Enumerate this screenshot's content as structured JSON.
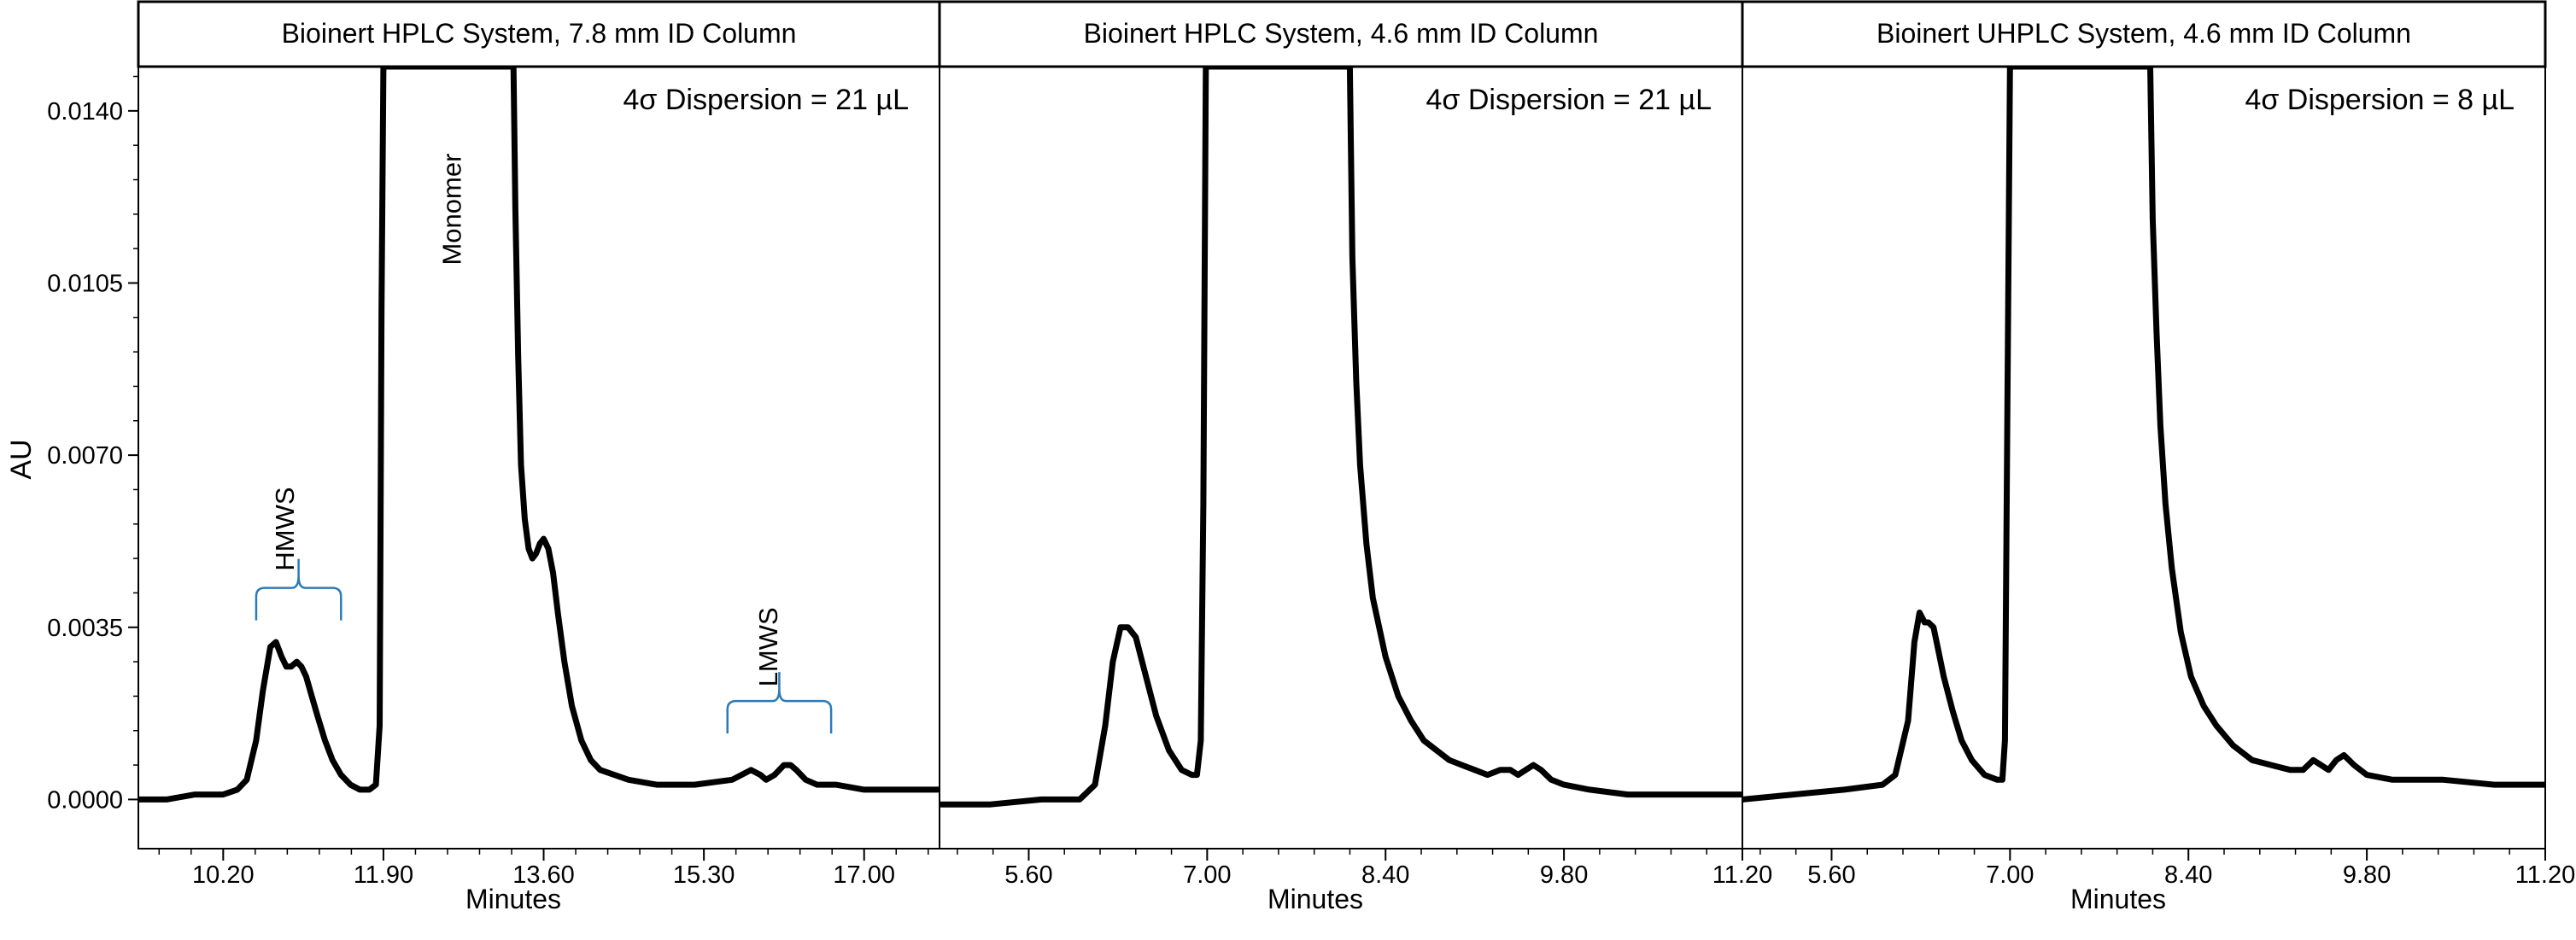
{
  "y_axis": {
    "label": "AU",
    "ticks": [
      {
        "value": 0.0,
        "label": "0.0000"
      },
      {
        "value": 0.0035,
        "label": "0.0035"
      },
      {
        "value": 0.007,
        "label": "0.0070"
      },
      {
        "value": 0.0105,
        "label": "0.0105"
      },
      {
        "value": 0.014,
        "label": "0.0140"
      }
    ]
  },
  "colors": {
    "trace": "#000000",
    "annotation": "#2b7bb9",
    "frame": "#000000",
    "background": "#ffffff"
  },
  "chart_data": [
    {
      "type": "line",
      "title": "Bioinert HPLC System, 7.8 mm ID Column",
      "annotation_text": "4σ Dispersion = 21 µL",
      "xlabel": "Minutes",
      "ylabel": "AU",
      "xlim": [
        9.3,
        17.8
      ],
      "ylim": [
        -0.001,
        0.0149
      ],
      "x_ticks": [
        {
          "value": 10.2,
          "label": "10.20"
        },
        {
          "value": 11.9,
          "label": "11.90"
        },
        {
          "value": 13.6,
          "label": "13.60"
        },
        {
          "value": 15.3,
          "label": "15.30"
        },
        {
          "value": 17.0,
          "label": "17.00"
        }
      ],
      "peak_labels": [
        {
          "text": "HMWS",
          "x": 10.95,
          "y": 0.0055,
          "bracket": [
            10.55,
            11.45
          ],
          "bracket_y": 0.0043
        },
        {
          "text": "Monomer",
          "x": 12.72,
          "y": 0.012
        },
        {
          "text": "LMWS",
          "x": 16.08,
          "y": 0.0031,
          "bracket": [
            15.55,
            16.65
          ],
          "bracket_y": 0.002
        }
      ],
      "series": [
        {
          "x": [
            9.3,
            9.6,
            9.9,
            10.2,
            10.35,
            10.45,
            10.55,
            10.62,
            10.7,
            10.76,
            10.82,
            10.87,
            10.92,
            10.98,
            11.03,
            11.08,
            11.14,
            11.2,
            11.28,
            11.36,
            11.45,
            11.55,
            11.65,
            11.75,
            11.82,
            11.86,
            11.88,
            11.9,
            11.92,
            12.0,
            13.28,
            13.3,
            13.33,
            13.36,
            13.4,
            13.44,
            13.48,
            13.52,
            13.56,
            13.6,
            13.65,
            13.7,
            13.75,
            13.82,
            13.9,
            14.0,
            14.1,
            14.2,
            14.35,
            14.5,
            14.8,
            15.2,
            15.6,
            15.8,
            15.9,
            15.96,
            16.05,
            16.15,
            16.22,
            16.28,
            16.38,
            16.5,
            16.7,
            17.0,
            17.4,
            17.8
          ],
          "y": [
            0.0,
            0.0,
            0.0001,
            0.0001,
            0.0002,
            0.0004,
            0.0012,
            0.0022,
            0.0031,
            0.0032,
            0.0029,
            0.0027,
            0.0027,
            0.0028,
            0.0027,
            0.0025,
            0.0021,
            0.0017,
            0.0012,
            0.0008,
            0.0005,
            0.0003,
            0.0002,
            0.0002,
            0.0003,
            0.0015,
            0.01,
            0.0149,
            0.0149,
            0.0149,
            0.0149,
            0.012,
            0.009,
            0.0068,
            0.0057,
            0.0051,
            0.0049,
            0.005,
            0.0052,
            0.0053,
            0.0051,
            0.0046,
            0.0038,
            0.0028,
            0.0019,
            0.0012,
            0.0008,
            0.0006,
            0.0005,
            0.0004,
            0.0003,
            0.0003,
            0.0004,
            0.0006,
            0.0005,
            0.0004,
            0.0005,
            0.0007,
            0.0007,
            0.0006,
            0.0004,
            0.0003,
            0.0003,
            0.0002,
            0.0002,
            0.0002
          ]
        }
      ]
    },
    {
      "type": "line",
      "title": "Bioinert HPLC System, 4.6 mm ID Column",
      "annotation_text": "4σ Dispersion = 21 µL",
      "xlabel": "Minutes",
      "ylabel": "AU",
      "xlim": [
        4.9,
        11.2
      ],
      "ylim": [
        -0.001,
        0.0149
      ],
      "x_ticks": [
        {
          "value": 5.6,
          "label": "5.60"
        },
        {
          "value": 7.0,
          "label": "7.00"
        },
        {
          "value": 8.4,
          "label": "8.40"
        },
        {
          "value": 9.8,
          "label": "9.80"
        },
        {
          "value": 11.2,
          "label": "11.20"
        }
      ],
      "peak_labels": [],
      "series": [
        {
          "x": [
            4.9,
            5.3,
            5.7,
            6.0,
            6.12,
            6.2,
            6.26,
            6.32,
            6.38,
            6.44,
            6.52,
            6.6,
            6.7,
            6.8,
            6.88,
            6.92,
            6.95,
            6.97,
            6.99,
            7.0,
            7.1,
            8.12,
            8.14,
            8.17,
            8.2,
            8.25,
            8.3,
            8.4,
            8.5,
            8.6,
            8.7,
            8.8,
            8.9,
            9.0,
            9.1,
            9.2,
            9.3,
            9.38,
            9.44,
            9.5,
            9.56,
            9.62,
            9.7,
            9.8,
            10.0,
            10.3,
            10.7,
            11.2
          ],
          "y": [
            -0.0001,
            -0.0001,
            0.0,
            0.0,
            0.0003,
            0.0015,
            0.0028,
            0.0035,
            0.0035,
            0.0033,
            0.0025,
            0.0017,
            0.001,
            0.0006,
            0.0005,
            0.0005,
            0.0012,
            0.006,
            0.0149,
            0.0149,
            0.0149,
            0.0149,
            0.011,
            0.0085,
            0.0068,
            0.0052,
            0.0041,
            0.0029,
            0.0021,
            0.0016,
            0.0012,
            0.001,
            0.0008,
            0.0007,
            0.0006,
            0.0005,
            0.0006,
            0.0006,
            0.0005,
            0.0006,
            0.0007,
            0.0006,
            0.0004,
            0.0003,
            0.0002,
            0.0001,
            0.0001,
            0.0001
          ]
        }
      ]
    },
    {
      "type": "line",
      "title": "Bioinert UHPLC System, 4.6 mm ID Column",
      "annotation_text": "4σ Dispersion = 8 µL",
      "xlabel": "Minutes",
      "ylabel": "AU",
      "xlim": [
        4.9,
        11.2
      ],
      "ylim": [
        -0.001,
        0.0149
      ],
      "x_ticks": [
        {
          "value": 5.6,
          "label": "5.60"
        },
        {
          "value": 7.0,
          "label": "7.00"
        },
        {
          "value": 8.4,
          "label": "8.40"
        },
        {
          "value": 9.8,
          "label": "9.80"
        },
        {
          "value": 11.2,
          "label": "11.20"
        }
      ],
      "peak_labels": [],
      "series": [
        {
          "x": [
            4.9,
            5.3,
            5.7,
            6.0,
            6.1,
            6.2,
            6.25,
            6.29,
            6.33,
            6.36,
            6.4,
            6.44,
            6.48,
            6.55,
            6.62,
            6.7,
            6.8,
            6.9,
            6.94,
            6.96,
            6.98,
            7.0,
            7.1,
            8.1,
            8.12,
            8.15,
            8.18,
            8.22,
            8.27,
            8.34,
            8.42,
            8.52,
            8.62,
            8.75,
            8.9,
            9.05,
            9.2,
            9.3,
            9.38,
            9.44,
            9.5,
            9.56,
            9.62,
            9.7,
            9.8,
            10.0,
            10.4,
            10.8,
            11.2
          ],
          "y": [
            0.0,
            0.0001,
            0.0002,
            0.0003,
            0.0005,
            0.0016,
            0.0032,
            0.0038,
            0.0036,
            0.0036,
            0.0035,
            0.003,
            0.0025,
            0.0018,
            0.0012,
            0.0008,
            0.0005,
            0.0004,
            0.0004,
            0.0012,
            0.008,
            0.0149,
            0.0149,
            0.0149,
            0.0118,
            0.0095,
            0.0076,
            0.006,
            0.0047,
            0.0034,
            0.0025,
            0.0019,
            0.0015,
            0.0011,
            0.0008,
            0.0007,
            0.0006,
            0.0006,
            0.0008,
            0.0007,
            0.0006,
            0.0008,
            0.0009,
            0.0007,
            0.0005,
            0.0004,
            0.0004,
            0.0003,
            0.0003
          ]
        }
      ]
    }
  ]
}
